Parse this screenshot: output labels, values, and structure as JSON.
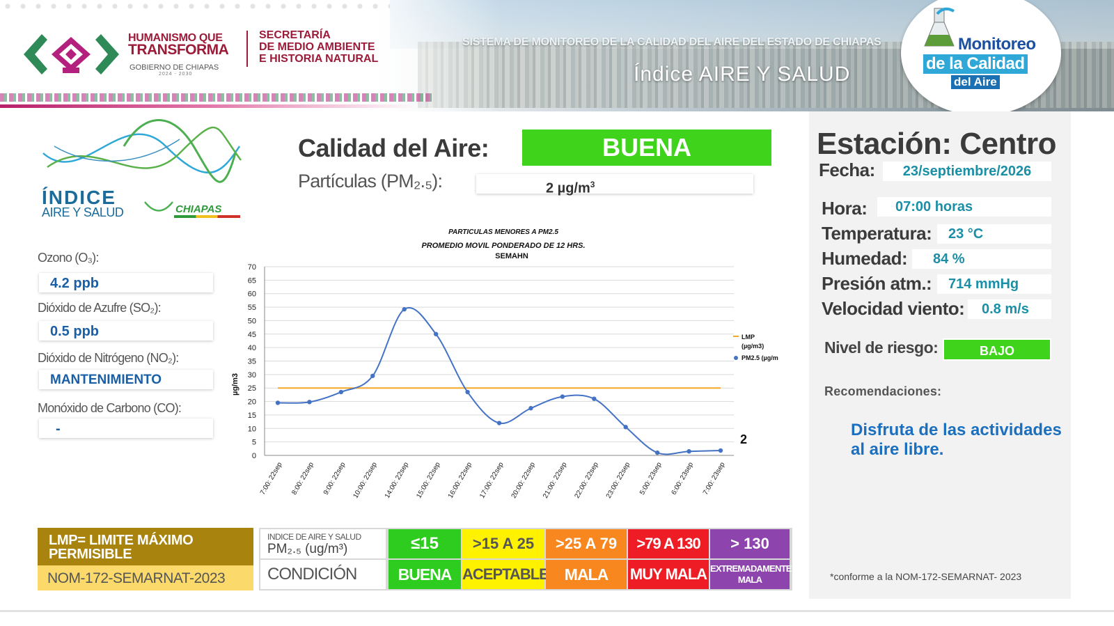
{
  "header": {
    "gov_line1": "HUMANISMO QUE",
    "gov_line2": "TRANSFORMA",
    "gov_line3": "GOBIERNO DE CHIAPAS",
    "gov_years": "2024 - 2030",
    "secretaria": [
      "SECRETARÍA",
      "DE MEDIO AMBIENTE",
      "E HISTORIA NATURAL"
    ],
    "system_title": "SISTEMA DE MONITOREO DE LA CALIDAD DEL AIRE DEL ESTADO DE CHIAPAS",
    "index_title": "Índice AIRE Y SALUD",
    "badge": {
      "line1": "Monitoreo",
      "line2": "de la Calidad",
      "line3": "del Aire"
    }
  },
  "index_logo": {
    "line1": "ÍNDICE",
    "line2": "AIRE Y SALUD",
    "line3": "CHIAPAS"
  },
  "pollutants": [
    {
      "label": "Ozono (O₃):",
      "value": "4.2 ppb"
    },
    {
      "label": "Dióxido de Azufre (SO₂):",
      "value": "0.5 ppb"
    },
    {
      "label": "Dióxido de Nitrógeno (NO₂):",
      "value": "MANTENIMIENTO"
    },
    {
      "label": "Monóxido de Carbono (CO):",
      "value": "-"
    }
  ],
  "air_quality": {
    "label": "Calidad del Aire:",
    "value": "BUENA",
    "pm_label": "Partículas (PM₂.₅):",
    "pm_value": "2 µg/m",
    "pm_unit_sup": "3"
  },
  "station": {
    "title": "Estación: Centro",
    "fields": [
      {
        "label": "Fecha:",
        "value": "23/septiembre/2026"
      },
      {
        "label": "Hora:",
        "value": "07:00 horas"
      },
      {
        "label": "Temperatura:",
        "value": "23 °C"
      },
      {
        "label": "Humedad:",
        "value": "84 %"
      },
      {
        "label": "Presión atm.:",
        "value": "714 mmHg"
      },
      {
        "label": "Velocidad viento:",
        "value": "0.8 m/s"
      }
    ],
    "risk_label": "Nivel de riesgo:",
    "risk_value": "BAJO",
    "recom_label": "Recomendaciones:",
    "recom_text": "Disfruta de las actividades al aire libre.",
    "nom_note": "*conforme a la NOM-172-SEMARNAT- 2023"
  },
  "legend": {
    "lmp_line1": "LMP= LIMITE MÁXIMO",
    "lmp_line2": "PERMISIBLE",
    "nom": "NOM-172-SEMARNAT-2023",
    "header_top": "INDICE DE AIRE Y SALUD",
    "header_pm": "PM₂.₅ (ug/m³)",
    "condition_label": "CONDICIÓN",
    "levels": [
      {
        "range": "≤15",
        "condition": "BUENA",
        "color": "#2ecc1f",
        "text_color": "#ffffff"
      },
      {
        "range": ">15 A 25",
        "condition": "ACEPTABLE",
        "color": "#fff200",
        "text_color": "#555555"
      },
      {
        "range": ">25 A 79",
        "condition": "MALA",
        "color": "#f7871e",
        "text_color": "#ffffff"
      },
      {
        "range": ">79 A 130",
        "condition": "MUY MALA",
        "color": "#ee1c25",
        "text_color": "#ffffff"
      },
      {
        "range": "> 130",
        "condition": "EXTREMADAMENTE MALA",
        "color": "#8e44ad",
        "text_color": "#ffffff"
      }
    ]
  },
  "chart_data": {
    "type": "line",
    "title_lines": [
      "PARTICULAS MENORES A PM2.5",
      "PROMEDIO MOVIL PONDERADO DE 12 HRS.",
      "SEMAHN"
    ],
    "ylabel": "µg/m3",
    "ylim": [
      0,
      70
    ],
    "yticks": [
      0,
      5,
      10,
      15,
      20,
      25,
      30,
      35,
      40,
      45,
      50,
      55,
      60,
      65,
      70
    ],
    "categories": [
      "7:00: 22sep",
      "8:00: 22sep",
      "9:00: 22sep",
      "10:00: 22sep",
      "14:00: 22sep",
      "15:00: 22sep",
      "16:00: 22sep",
      "17:00: 22sep",
      "20:00: 22sep",
      "21:00: 22sep",
      "22:00: 22sep",
      "23:00: 22sep",
      "5:00: 23sep",
      "6:00: 23sep",
      "7:00: 23sep"
    ],
    "series": [
      {
        "name": "LMP (µg/m3)",
        "color": "#f5a623",
        "values": [
          25,
          25,
          25,
          25,
          25,
          25,
          25,
          25,
          25,
          25,
          25,
          25,
          25,
          25,
          25
        ],
        "markers": false
      },
      {
        "name": "PM2.5 (µg/m",
        "color": "#4472c4",
        "values": [
          19.5,
          19.8,
          23.5,
          29.5,
          54.2,
          45,
          23.5,
          12,
          17.5,
          21.8,
          21,
          10.5,
          1,
          1.5,
          1.8
        ],
        "markers": true
      }
    ],
    "last_value_label": "2",
    "legend_position": "right"
  }
}
